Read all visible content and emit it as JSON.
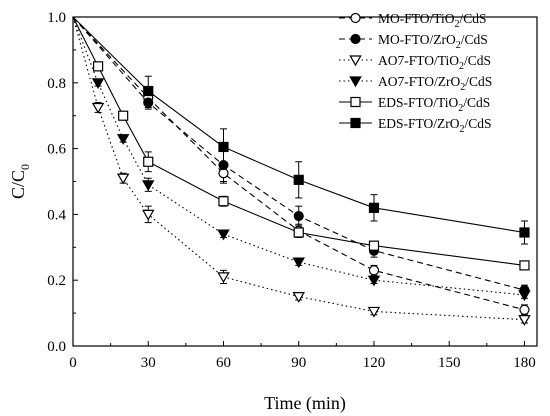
{
  "chart_data": {
    "type": "line",
    "xlabel": "Time (min)",
    "ylabel": "C/C",
    "ylabel_sub": "0",
    "xlim": [
      0,
      185
    ],
    "ylim": [
      0.0,
      1.0
    ],
    "xticks": [
      0,
      30,
      60,
      90,
      120,
      150,
      180
    ],
    "yticks": [
      0.0,
      0.2,
      0.4,
      0.6,
      0.8,
      1.0
    ],
    "xtick_labels": [
      "0",
      "30",
      "60",
      "90",
      "120",
      "150",
      "180"
    ],
    "ytick_labels": [
      "0.0",
      "0.2",
      "0.4",
      "0.6",
      "0.8",
      "1.0"
    ],
    "legend_position": "top-right",
    "grid": false,
    "series": [
      {
        "name": "MO-FTO/TiO2/CdS",
        "legend": {
          "pre": "MO-FTO/TiO",
          "sub": "2",
          "post": "/CdS"
        },
        "marker": "circle",
        "filled": false,
        "dash": "dashed",
        "x": [
          0,
          30,
          60,
          90,
          120,
          180
        ],
        "y": [
          1.0,
          0.755,
          0.525,
          0.35,
          0.23,
          0.11
        ],
        "err": [
          0,
          0.03,
          0.03,
          0.02,
          0.015,
          0.015
        ]
      },
      {
        "name": "MO-FTO/ZrO2/CdS",
        "legend": {
          "pre": "MO-FTO/ZrO",
          "sub": "2",
          "post": "/CdS"
        },
        "marker": "circle",
        "filled": true,
        "dash": "dashed",
        "x": [
          0,
          30,
          60,
          90,
          120,
          180
        ],
        "y": [
          1.0,
          0.74,
          0.55,
          0.395,
          0.29,
          0.17
        ],
        "err": [
          0,
          0.02,
          0.05,
          0.03,
          0.02,
          0.015
        ]
      },
      {
        "name": "AO7-FTO/TiO2/CdS",
        "legend": {
          "pre": "AO7-FTO/TiO",
          "sub": "2",
          "post": "/CdS"
        },
        "marker": "triangle-down",
        "filled": false,
        "dash": "dotted",
        "x": [
          0,
          10,
          20,
          30,
          60,
          90,
          120,
          180
        ],
        "y": [
          1.0,
          0.725,
          0.51,
          0.4,
          0.21,
          0.15,
          0.105,
          0.08
        ],
        "err": [
          0,
          0.015,
          0.015,
          0.025,
          0.02,
          0.01,
          0.01,
          0.01
        ]
      },
      {
        "name": "AO7-FTO/ZrO2/CdS",
        "legend": {
          "pre": "AO7-FTO/ZrO",
          "sub": "2",
          "post": "/CdS"
        },
        "marker": "triangle-down",
        "filled": true,
        "dash": "dotted",
        "x": [
          0,
          10,
          20,
          30,
          60,
          90,
          120,
          180
        ],
        "y": [
          1.0,
          0.8,
          0.63,
          0.49,
          0.34,
          0.255,
          0.2,
          0.155
        ],
        "err": [
          0,
          0.01,
          0.01,
          0.02,
          0.01,
          0.01,
          0.01,
          0.01
        ]
      },
      {
        "name": "EDS-FTO/TiO2/CdS",
        "legend": {
          "pre": "EDS-FTO/TiO",
          "sub": "2",
          "post": "/CdS"
        },
        "marker": "square",
        "filled": false,
        "dash": "solid",
        "x": [
          0,
          10,
          20,
          30,
          60,
          90,
          120,
          180
        ],
        "y": [
          1.0,
          0.85,
          0.7,
          0.56,
          0.44,
          0.345,
          0.305,
          0.245
        ],
        "err": [
          0,
          0.01,
          0.01,
          0.03,
          0.015,
          0.015,
          0.01,
          0.01
        ]
      },
      {
        "name": "EDS-FTO/ZrO2/CdS",
        "legend": {
          "pre": "EDS-FTO/ZrO",
          "sub": "2",
          "post": "/CdS"
        },
        "marker": "square",
        "filled": true,
        "dash": "solid",
        "x": [
          0,
          30,
          60,
          90,
          120,
          180
        ],
        "y": [
          1.0,
          0.775,
          0.605,
          0.505,
          0.42,
          0.345
        ],
        "err": [
          0,
          0.045,
          0.055,
          0.055,
          0.04,
          0.035
        ]
      }
    ]
  }
}
